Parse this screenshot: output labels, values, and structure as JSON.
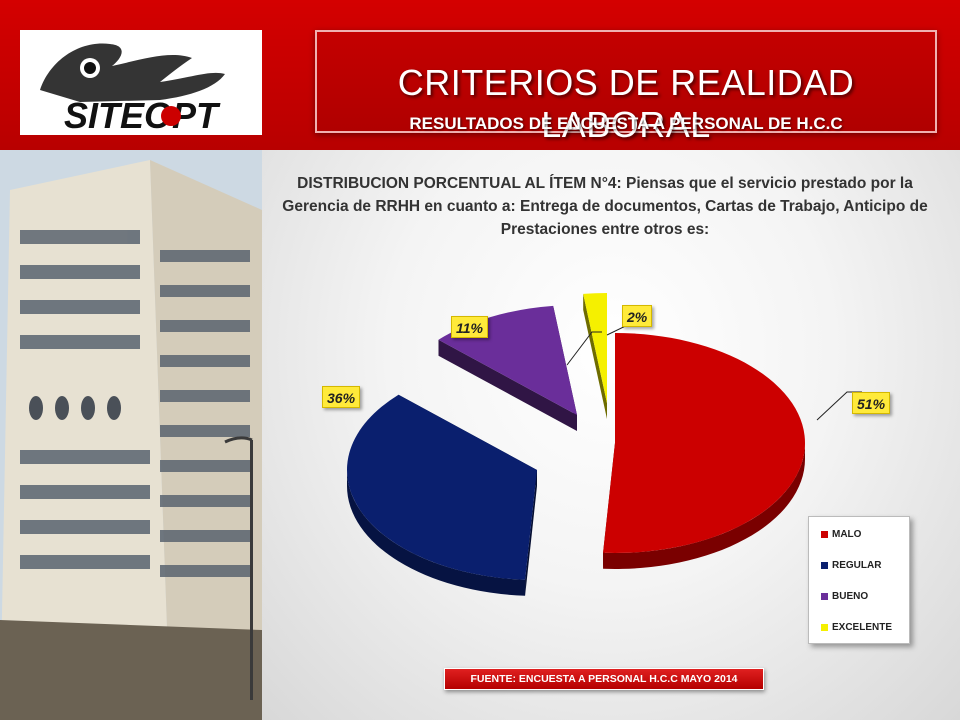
{
  "header": {
    "logo_text": "SITEOPT",
    "title": "CRITERIOS DE REALIDAD LABORAL",
    "subtitle": "RESULTADOS DE ENCUESTA A PERSONAL DE H.C.C"
  },
  "question": "DISTRIBUCION PORCENTUAL AL ÍTEM N°4: Piensas que el servicio prestado por la Gerencia de RRHH en cuanto a: Entrega de documentos, Cartas de Trabajo, Anticipo de Prestaciones entre otros es:",
  "chart_data": {
    "type": "pie",
    "title": "",
    "categories": [
      "MALO",
      "REGULAR",
      "BUENO",
      "EXCELENTE"
    ],
    "values": [
      51,
      36,
      11,
      2
    ],
    "value_labels": [
      "51%",
      "36%",
      "11%",
      "2%"
    ],
    "colors": [
      "#cc0000",
      "#0a1f6e",
      "#6a2e9a",
      "#f5f000"
    ],
    "exploded": true,
    "three_d": true,
    "legend_position": "bottom-right"
  },
  "source_note": "FUENTE: ENCUESTA A PERSONAL H.C.C MAYO 2014"
}
